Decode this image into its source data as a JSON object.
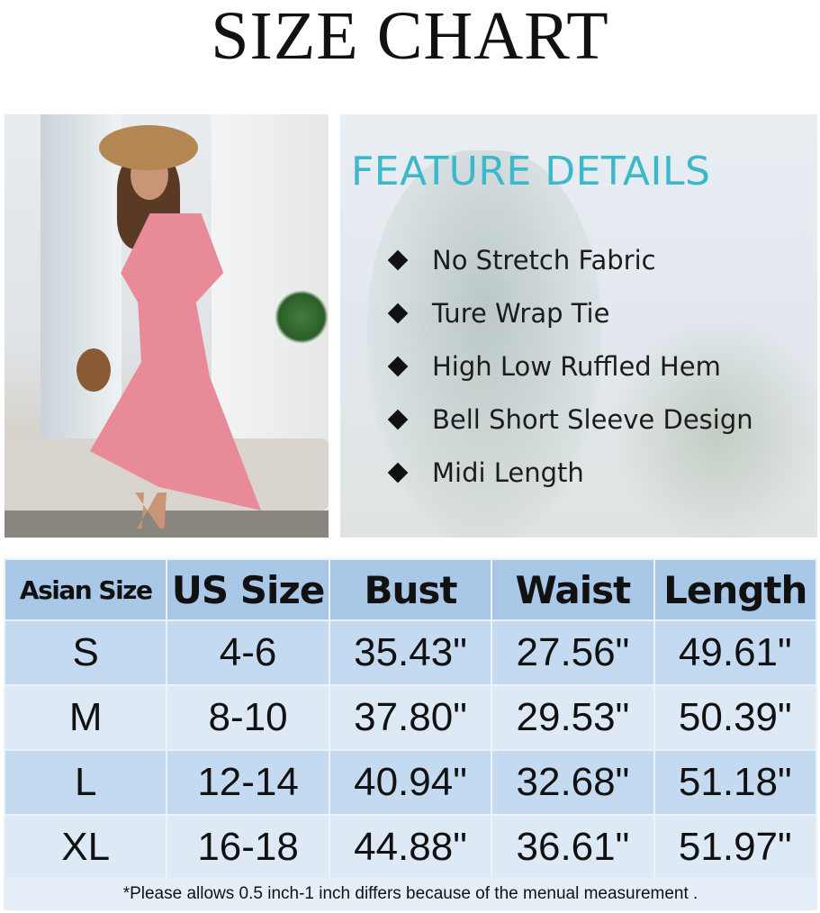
{
  "title": "SIZE CHART",
  "features": {
    "heading": "FEATURE DETAILS",
    "items": [
      "No Stretch Fabric",
      "Ture Wrap Tie",
      "High Low Ruffled Hem",
      "Bell Short Sleeve Design",
      "Midi Length"
    ],
    "heading_color": "#3bb8c9"
  },
  "table": {
    "headers": [
      "Asian Size",
      "US Size",
      "Bust",
      "Waist",
      "Length"
    ],
    "rows": [
      [
        "S",
        "4-6",
        "35.43\"",
        "27.56\"",
        "49.61\""
      ],
      [
        "M",
        "8-10",
        "37.80\"",
        "29.53\"",
        "50.39\""
      ],
      [
        "L",
        "12-14",
        "40.94\"",
        "32.68\"",
        "51.18\""
      ],
      [
        "XL",
        "16-18",
        "44.88\"",
        "36.61\"",
        "51.97\""
      ]
    ],
    "header_color": "#a9c8e8",
    "row_colors": [
      "#c4daf0",
      "#dde9f5"
    ]
  },
  "note": "*Please allows 0.5 inch-1 inch differs because of the menual measurement ."
}
